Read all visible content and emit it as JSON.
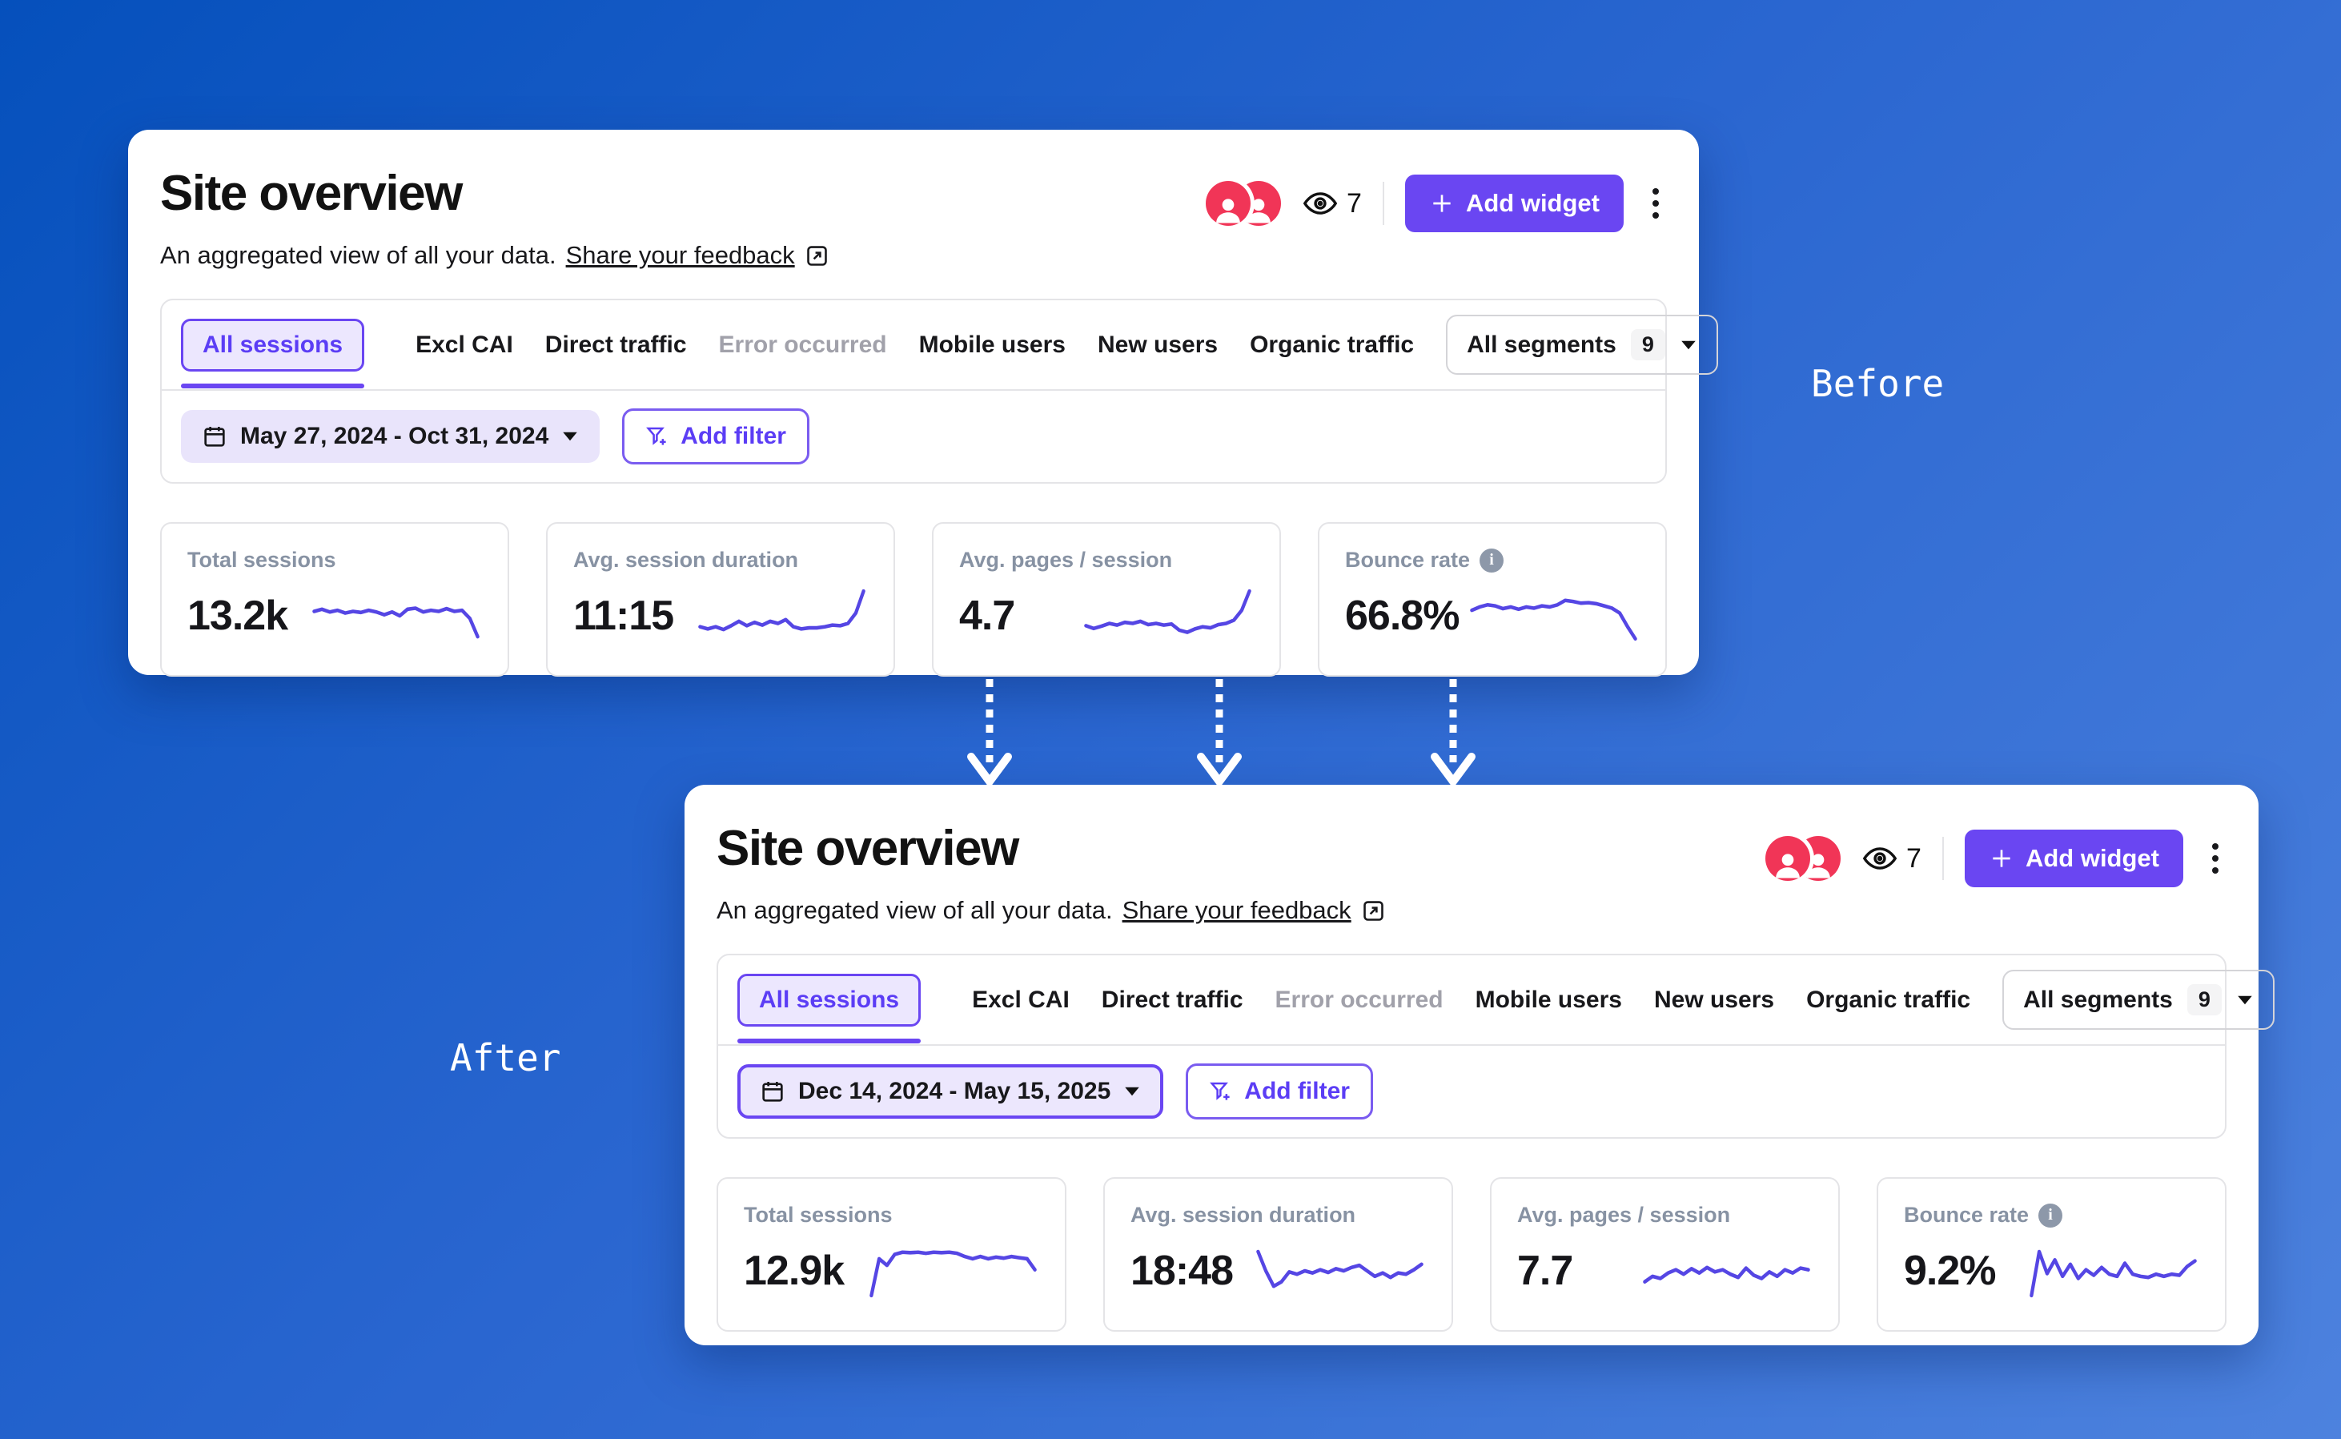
{
  "page": {
    "before_label": "Before",
    "after_label": "After"
  },
  "colors": {
    "background_top": "#0550bc",
    "background_bottom": "#4d82de",
    "accent_purple": "#6a46f2",
    "link_purple": "#5b3df5",
    "sparkline": "#5546e4",
    "avatar_red": "#f13557"
  },
  "panel_common": {
    "title": "Site overview",
    "subtitle": "An aggregated view of all your data.",
    "feedback_link_label": "Share your feedback",
    "viewers_count": "7",
    "add_widget_label": "Add widget",
    "tabs": [
      {
        "label": "All sessions",
        "state": "active"
      },
      {
        "label": "Excl CAI",
        "state": "default"
      },
      {
        "label": "Direct traffic",
        "state": "default"
      },
      {
        "label": "Error occurred",
        "state": "muted"
      },
      {
        "label": "Mobile users",
        "state": "default"
      },
      {
        "label": "New users",
        "state": "default"
      },
      {
        "label": "Organic traffic",
        "state": "default"
      }
    ],
    "segments_label": "All segments",
    "segments_count": "9",
    "add_filter_label": "Add filter"
  },
  "panels": {
    "before": {
      "date_range": "May 27, 2024 - Oct 31, 2024",
      "metrics": [
        {
          "label": "Total sessions",
          "value": "13.2k",
          "sparkline": [
            0.58,
            0.62,
            0.57,
            0.6,
            0.55,
            0.58,
            0.56,
            0.6,
            0.57,
            0.52,
            0.57,
            0.5,
            0.62,
            0.64,
            0.57,
            0.6,
            0.58,
            0.63,
            0.58,
            0.6,
            0.45,
            0.12
          ]
        },
        {
          "label": "Avg. session duration",
          "value": "11:15",
          "sparkline": [
            0.3,
            0.26,
            0.3,
            0.25,
            0.32,
            0.4,
            0.32,
            0.38,
            0.33,
            0.4,
            0.36,
            0.43,
            0.3,
            0.26,
            0.28,
            0.28,
            0.3,
            0.33,
            0.32,
            0.36,
            0.55,
            0.95
          ]
        },
        {
          "label": "Avg. pages / session",
          "value": "4.7",
          "sparkline": [
            0.32,
            0.27,
            0.31,
            0.36,
            0.33,
            0.38,
            0.36,
            0.4,
            0.34,
            0.36,
            0.33,
            0.35,
            0.24,
            0.2,
            0.26,
            0.3,
            0.28,
            0.34,
            0.36,
            0.42,
            0.6,
            0.95
          ]
        },
        {
          "label": "Bounce rate",
          "value": "66.8%",
          "has_info_icon": true,
          "sparkline": [
            0.6,
            0.66,
            0.7,
            0.68,
            0.63,
            0.66,
            0.62,
            0.66,
            0.64,
            0.68,
            0.66,
            0.7,
            0.78,
            0.76,
            0.73,
            0.74,
            0.72,
            0.68,
            0.64,
            0.55,
            0.3,
            0.08
          ]
        }
      ]
    },
    "after": {
      "date_range": "Dec 14, 2024 - May 15, 2025",
      "metrics": [
        {
          "label": "Total sessions",
          "value": "12.9k",
          "sparkline": [
            0.05,
            0.72,
            0.6,
            0.8,
            0.84,
            0.83,
            0.84,
            0.82,
            0.84,
            0.83,
            0.84,
            0.82,
            0.76,
            0.72,
            0.76,
            0.72,
            0.75,
            0.73,
            0.76,
            0.74,
            0.72,
            0.52
          ]
        },
        {
          "label": "Avg. session duration",
          "value": "18:48",
          "sparkline": [
            0.85,
            0.5,
            0.22,
            0.3,
            0.48,
            0.44,
            0.5,
            0.46,
            0.52,
            0.47,
            0.54,
            0.5,
            0.56,
            0.6,
            0.5,
            0.4,
            0.46,
            0.38,
            0.46,
            0.44,
            0.52,
            0.62
          ]
        },
        {
          "label": "Avg. pages / session",
          "value": "7.7",
          "sparkline": [
            0.3,
            0.4,
            0.36,
            0.46,
            0.52,
            0.44,
            0.54,
            0.46,
            0.56,
            0.48,
            0.52,
            0.44,
            0.38,
            0.55,
            0.42,
            0.36,
            0.48,
            0.4,
            0.52,
            0.46,
            0.55,
            0.52
          ]
        },
        {
          "label": "Bounce rate",
          "value": "9.2%",
          "has_info_icon": true,
          "sparkline": [
            0.05,
            0.85,
            0.45,
            0.7,
            0.4,
            0.62,
            0.36,
            0.52,
            0.42,
            0.56,
            0.44,
            0.4,
            0.64,
            0.44,
            0.4,
            0.38,
            0.44,
            0.4,
            0.44,
            0.42,
            0.58,
            0.68
          ]
        }
      ]
    }
  }
}
